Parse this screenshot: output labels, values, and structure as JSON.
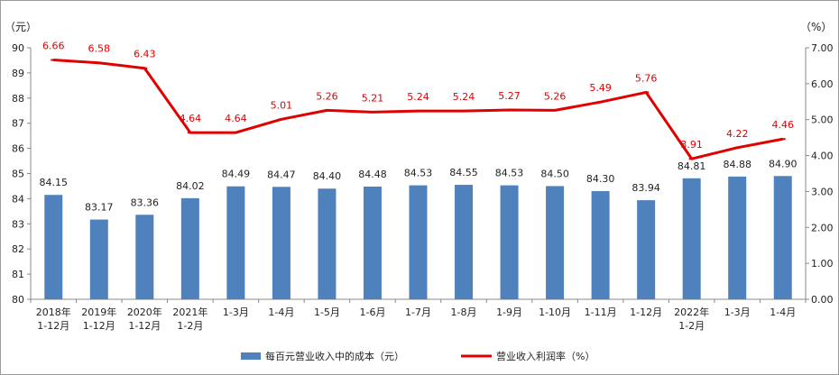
{
  "chart_data": {
    "type": "bar",
    "categories": [
      "2018年 1-12月",
      "2019年 1-12月",
      "2020年 1-12月",
      "2021年 1-2月",
      "1-3月",
      "1-4月",
      "1-5月",
      "1-6月",
      "1-7月",
      "1-8月",
      "1-9月",
      "1-10月",
      "1-11月",
      "1-12月",
      "2022年 1-2月",
      "1-3月",
      "1-4月"
    ],
    "series": [
      {
        "name": "每百元营业收入中的成本（元）",
        "type": "bar",
        "axis": "left",
        "color": "#4f81bd",
        "values": [
          84.15,
          83.17,
          83.36,
          84.02,
          84.49,
          84.47,
          84.4,
          84.48,
          84.53,
          84.55,
          84.53,
          84.5,
          84.3,
          83.94,
          84.81,
          84.88,
          84.9
        ]
      },
      {
        "name": "营业收入利润率（%）",
        "type": "line",
        "axis": "right",
        "color": "#e00000",
        "values": [
          6.66,
          6.58,
          6.43,
          4.64,
          4.64,
          5.01,
          5.26,
          5.21,
          5.24,
          5.24,
          5.27,
          5.26,
          5.49,
          5.76,
          3.91,
          4.22,
          4.46
        ]
      }
    ],
    "left_axis": {
      "unit": "（元）",
      "ylim": [
        80,
        90
      ],
      "ticks": [
        "80",
        "81",
        "82",
        "83",
        "84",
        "85",
        "86",
        "87",
        "88",
        "89",
        "90"
      ]
    },
    "right_axis": {
      "unit": "（%）",
      "ylim": [
        0,
        7
      ],
      "ticks": [
        "0.00",
        "1.00",
        "2.00",
        "3.00",
        "4.00",
        "5.00",
        "6.00",
        "7.00"
      ]
    },
    "grid": false,
    "legend_position": "bottom"
  }
}
